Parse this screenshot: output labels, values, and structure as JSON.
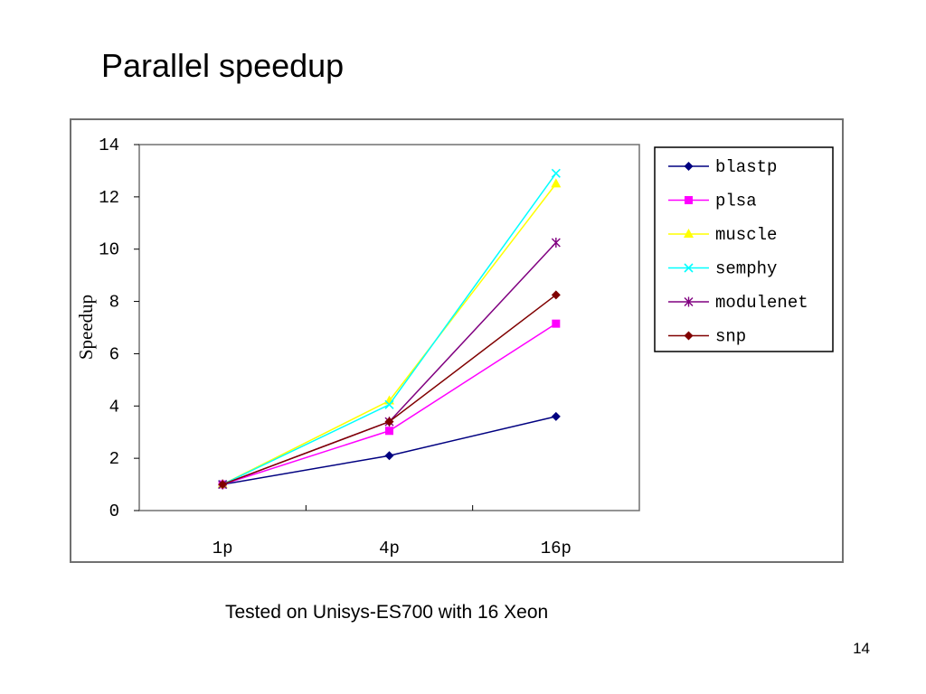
{
  "slide": {
    "title": "Parallel speedup",
    "caption": "Tested on Unisys-ES700 with 16 Xeon",
    "page_number": "14"
  },
  "chart_data": {
    "type": "line",
    "title": "",
    "xlabel": "",
    "ylabel": "Speedup",
    "categories": [
      "1p",
      "4p",
      "16p"
    ],
    "ylim": [
      0,
      14
    ],
    "yticks": [
      0,
      2,
      4,
      6,
      8,
      10,
      12,
      14
    ],
    "grid": false,
    "legend_position": "right",
    "series": [
      {
        "name": "blastp",
        "values": [
          1.0,
          2.1,
          3.6
        ],
        "color": "#000080",
        "marker": "diamond"
      },
      {
        "name": "plsa",
        "values": [
          1.0,
          3.05,
          7.15
        ],
        "color": "#ff00ff",
        "marker": "square"
      },
      {
        "name": "muscle",
        "values": [
          1.0,
          4.2,
          12.5
        ],
        "color": "#ffff00",
        "marker": "triangle"
      },
      {
        "name": "semphy",
        "values": [
          1.0,
          4.05,
          12.9
        ],
        "color": "#00ffff",
        "marker": "x"
      },
      {
        "name": "modulenet",
        "values": [
          1.0,
          3.4,
          10.25
        ],
        "color": "#800080",
        "marker": "star"
      },
      {
        "name": "snp",
        "values": [
          1.0,
          3.4,
          8.25
        ],
        "color": "#800000",
        "marker": "diamond"
      }
    ]
  }
}
